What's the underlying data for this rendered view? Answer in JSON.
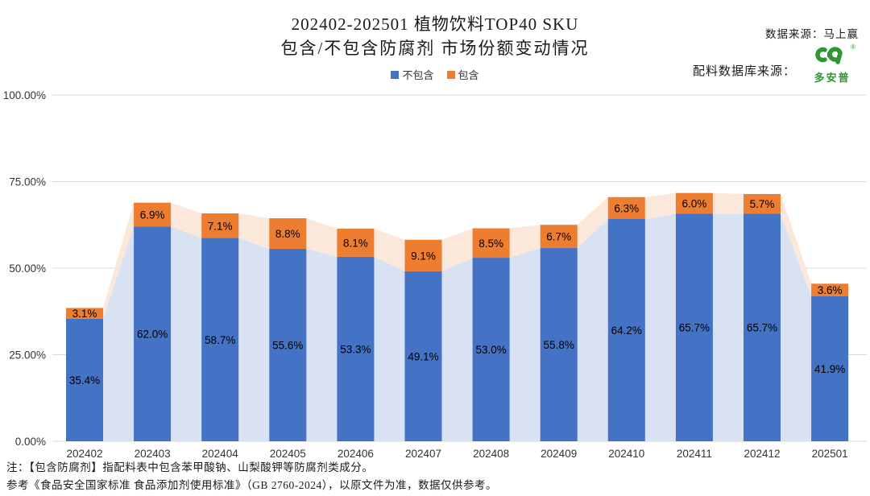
{
  "header": {
    "title_line1": "202402-202501 植物饮料TOP40 SKU",
    "title_line2": "包含/不包含防腐剂 市场份额变动情况",
    "data_source": "数据来源：马上赢",
    "db_source_label": "配料数据库来源：",
    "logo": {
      "brand": "多安普",
      "reg": "®"
    }
  },
  "notes": {
    "line1": "注：【包含防腐剂】指配料表中包含苯甲酸钠、山梨酸钾等防腐剂类成分。",
    "line2": "参考《食品安全国家标准 食品添加剂使用标准》（GB 2760-2024），以原文件为准，数据仅供参考。"
  },
  "colors": {
    "blue": "#4472C4",
    "orange": "#ED7D31",
    "area_blue": "#D9E2F3",
    "area_peach": "#FBE8DA",
    "grid": "#D9D9D9",
    "axis_text": "#333333",
    "label_text": "#000000",
    "brand_green": "#2e9632"
  },
  "chart_data": {
    "type": "bar",
    "subtype": "stacked-bars-with-background-area",
    "title": "202402-202501 植物饮料TOP40 SKU 包含/不包含防腐剂 市场份额变动情况",
    "xlabel": "",
    "ylabel": "",
    "ylim": [
      0,
      100
    ],
    "grid": true,
    "legend_position": "top",
    "categories": [
      "202402",
      "202403",
      "202404",
      "202405",
      "202406",
      "202407",
      "202408",
      "202409",
      "202410",
      "202411",
      "202412",
      "202501"
    ],
    "series": [
      {
        "name": "不包含",
        "color": "#4472C4",
        "area_color": "#D9E2F3",
        "values": [
          35.4,
          62.0,
          58.7,
          55.6,
          53.3,
          49.1,
          53.0,
          55.8,
          64.2,
          65.7,
          65.7,
          41.9
        ],
        "labels": [
          "35.4%",
          "62.0%",
          "58.7%",
          "55.6%",
          "53.3%",
          "49.1%",
          "53.0%",
          "55.8%",
          "64.2%",
          "65.7%",
          "65.7%",
          "41.9%"
        ]
      },
      {
        "name": "包含",
        "color": "#ED7D31",
        "area_color": "#FBE8DA",
        "values": [
          3.1,
          6.9,
          7.1,
          8.8,
          8.1,
          9.1,
          8.5,
          6.7,
          6.3,
          6.0,
          5.7,
          3.6
        ],
        "labels": [
          "3.1%",
          "6.9%",
          "7.1%",
          "8.8%",
          "8.1%",
          "9.1%",
          "8.5%",
          "6.7%",
          "6.3%",
          "6.0%",
          "5.7%",
          "3.6%"
        ]
      }
    ],
    "yticks": [
      {
        "value": 0,
        "label": "0.00%"
      },
      {
        "value": 25,
        "label": "25.00%"
      },
      {
        "value": 50,
        "label": "50.00%"
      },
      {
        "value": 75,
        "label": "75.00%"
      },
      {
        "value": 100,
        "label": "100.00%"
      }
    ]
  }
}
